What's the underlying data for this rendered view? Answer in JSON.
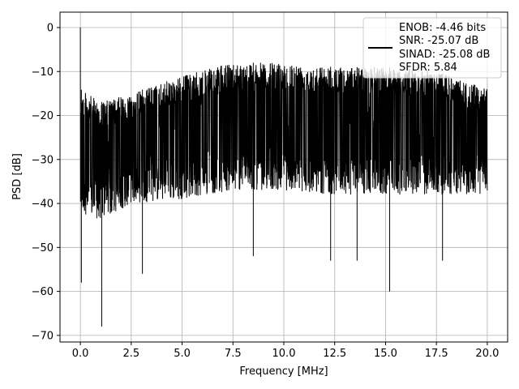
{
  "chart_data": {
    "type": "line",
    "title": "",
    "xlabel": "Frequency [MHz]",
    "ylabel": "PSD [dB]",
    "xlim": [
      -1.0,
      21.0
    ],
    "ylim": [
      -71.5,
      3.5
    ],
    "xticks": [
      0.0,
      2.5,
      5.0,
      7.5,
      10.0,
      12.5,
      15.0,
      17.5,
      20.0
    ],
    "xtick_labels": [
      "0.0",
      "2.5",
      "5.0",
      "7.5",
      "10.0",
      "12.5",
      "15.0",
      "17.5",
      "20.0"
    ],
    "yticks": [
      0,
      -10,
      -20,
      -30,
      -40,
      -50,
      -60,
      -70
    ],
    "ytick_labels": [
      "0",
      "−10",
      "−20",
      "−30",
      "−40",
      "−50",
      "−60",
      "−70"
    ],
    "grid": true,
    "legend_position": "top-right",
    "series": [
      {
        "name": "",
        "color": "#000000",
        "x_range": [
          0.0,
          20.0
        ],
        "peak": {
          "x": 0.0,
          "y": 0.0
        },
        "envelope_x": [
          0.0,
          1.0,
          2.5,
          5.0,
          7.5,
          10.0,
          12.5,
          15.0,
          17.5,
          20.0
        ],
        "envelope_upper": [
          -14,
          -17,
          -15,
          -11,
          -8,
          -8,
          -9,
          -9,
          -10,
          -14
        ],
        "envelope_lower": [
          -42,
          -44,
          -40,
          -39,
          -37,
          -37,
          -38,
          -38,
          -38,
          -38
        ],
        "notable_dips": [
          {
            "x": 0.05,
            "y": -58
          },
          {
            "x": 1.05,
            "y": -68
          },
          {
            "x": 3.05,
            "y": -56
          },
          {
            "x": 8.5,
            "y": -52
          },
          {
            "x": 12.3,
            "y": -53
          },
          {
            "x": 13.6,
            "y": -53
          },
          {
            "x": 15.2,
            "y": -60
          },
          {
            "x": 17.8,
            "y": -53
          }
        ]
      }
    ],
    "legend": {
      "lines": [
        "ENOB: -4.46 bits",
        "SNR: -25.07 dB",
        "SINAD: -25.08 dB",
        "SFDR: 5.84"
      ]
    }
  }
}
